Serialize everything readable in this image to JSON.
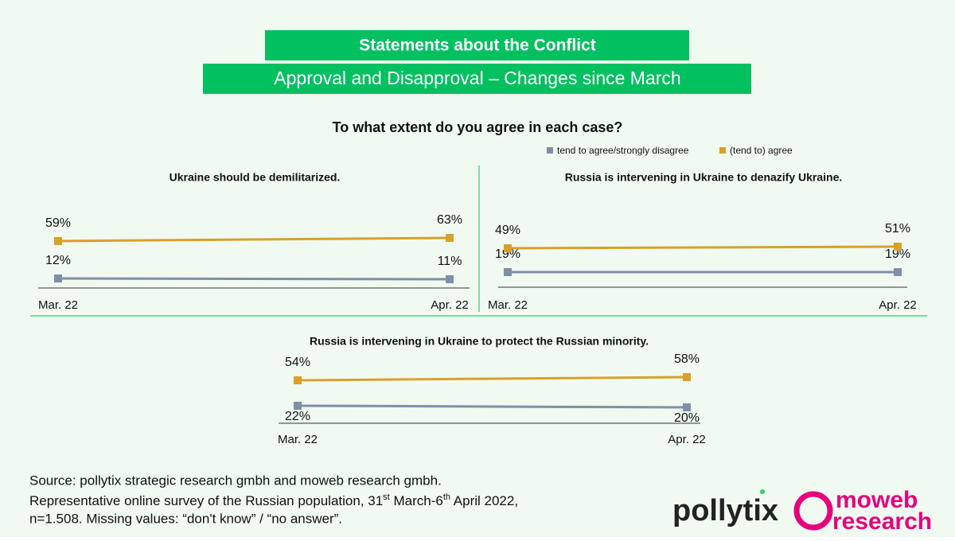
{
  "header": {
    "title": "Statements about the Conflict",
    "subtitle": "Approval and Disapproval – Changes since March"
  },
  "question": "To what extent do you agree in each case?",
  "chart_data": [
    {
      "type": "line",
      "title": "Ukraine should be demilitarized.",
      "categories": [
        "Mar. 22",
        "Apr. 22"
      ],
      "series": [
        {
          "name": "tend to agree/strongly disagree",
          "color": "#7f8fa9",
          "values": [
            12,
            11
          ],
          "value_labels": [
            "12%",
            "11%"
          ]
        },
        {
          "name": "(tend to) agree",
          "color": "#d9a02a",
          "values": [
            59,
            63
          ],
          "value_labels": [
            "59%",
            "63%"
          ]
        }
      ]
    },
    {
      "type": "line",
      "title": "Russia is intervening in Ukraine to denazify Ukraine.",
      "categories": [
        "Mar. 22",
        "Apr. 22"
      ],
      "series": [
        {
          "color": "#7f8fa9",
          "values": [
            19,
            19
          ],
          "value_labels": [
            "19%",
            "19%"
          ]
        },
        {
          "color": "#d9a02a",
          "values": [
            49,
            51
          ],
          "value_labels": [
            "49%",
            "51%"
          ]
        }
      ]
    },
    {
      "type": "line",
      "title": "Russia is intervening in Ukraine to protect the Russian minority.",
      "categories": [
        "Mar. 22",
        "Apr. 22"
      ],
      "series": [
        {
          "color": "#7f8fa9",
          "values": [
            22,
            20
          ],
          "value_labels": [
            "22%",
            "20%"
          ]
        },
        {
          "color": "#d9a02a",
          "values": [
            54,
            58
          ],
          "value_labels": [
            "54%",
            "58%"
          ]
        }
      ]
    }
  ],
  "source": {
    "line1": "Source: pollytix strategic research gmbh and moweb research gmbh.",
    "line2": [
      "Representative online survey of the Russian population, 31",
      "st",
      " March-6",
      "th",
      " April 2022,"
    ],
    "line3": "n=1.508. Missing values: “don't know” / “no answer”."
  },
  "logos": {
    "pollytix": "pollytix",
    "moweb": [
      "moweb",
      "research"
    ]
  }
}
